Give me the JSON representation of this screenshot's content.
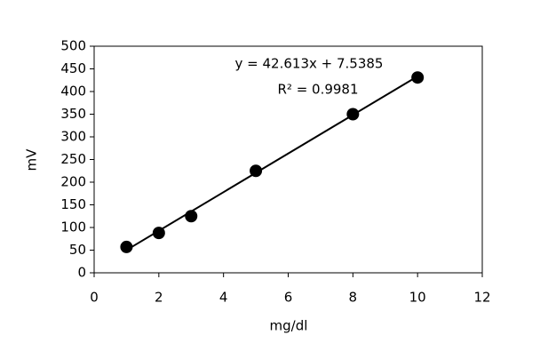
{
  "chart_data": {
    "type": "scatter",
    "x_label": "mg/dl",
    "y_label": "mV",
    "x": [
      1,
      2,
      3,
      5,
      8,
      10
    ],
    "values": [
      57,
      88,
      125,
      225,
      350,
      431
    ],
    "color": "#000000",
    "trendline": {
      "slope": 42.613,
      "intercept": 7.5385
    },
    "annotations": [
      "y = 42.613x + 7.5385",
      "R² = 0.9981"
    ],
    "xlim": [
      0,
      12
    ],
    "xticks": [
      0,
      2,
      4,
      6,
      8,
      10,
      12
    ],
    "ylim": [
      0,
      500
    ],
    "yticks": [
      0,
      50,
      100,
      150,
      200,
      250,
      300,
      350,
      400,
      450,
      500
    ],
    "grid": false
  }
}
